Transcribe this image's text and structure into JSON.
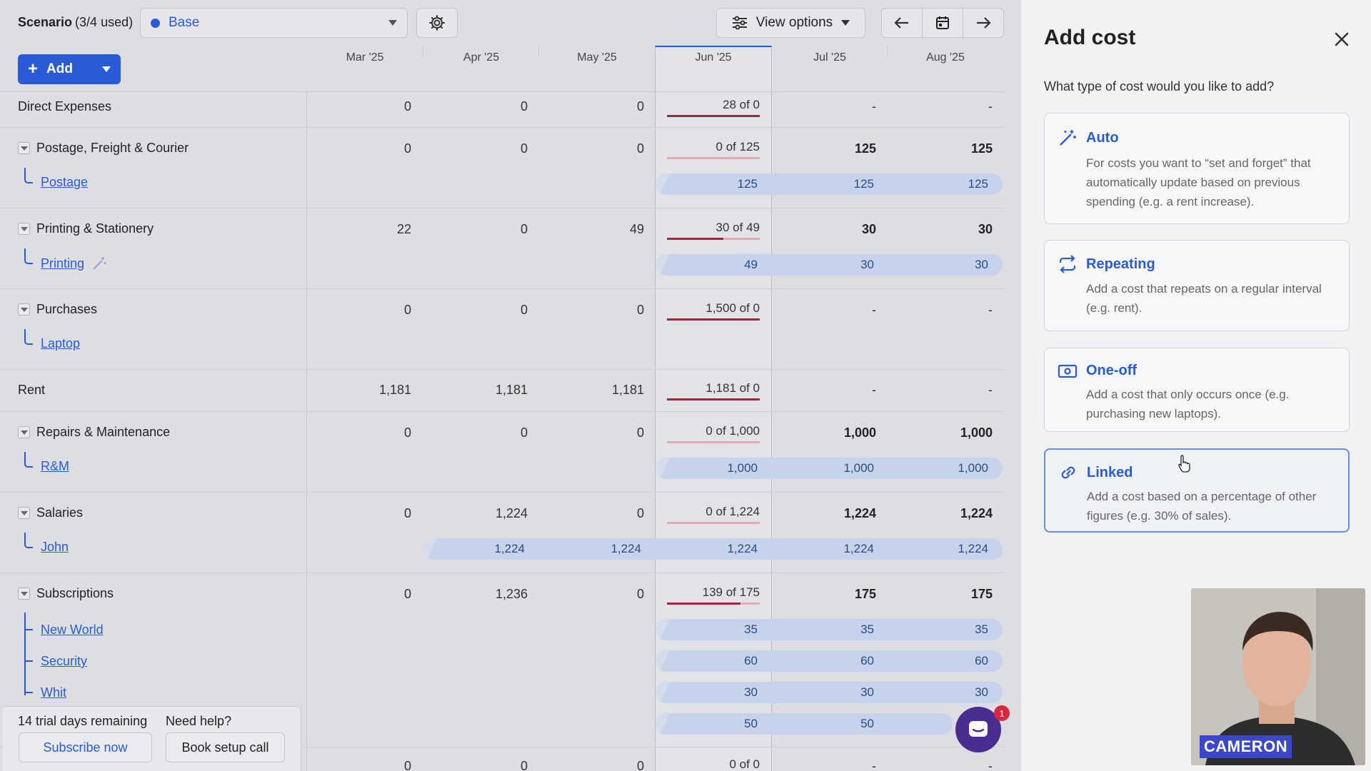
{
  "toolbar": {
    "scenario_label": "Scenario",
    "scenario_used": "(3/4 used)",
    "scenario_value": "Base",
    "view_options": "View options",
    "add_label": "Add"
  },
  "months": [
    "Mar '25",
    "Apr '25",
    "May '25",
    "Jun '25",
    "Jul '25",
    "Aug '25"
  ],
  "rows": {
    "direct": {
      "label": "Direct Expenses",
      "mar": "0",
      "apr": "0",
      "may": "0",
      "jun": "28 of 0",
      "jul": "-",
      "aug": "-"
    },
    "postage_grp": {
      "label": "Postage, Freight & Courier",
      "mar": "0",
      "apr": "0",
      "may": "0",
      "jun": "0 of 125",
      "jul": "125",
      "aug": "125"
    },
    "postage": {
      "label": "Postage",
      "jun": "125",
      "jul": "125",
      "aug": "125"
    },
    "printing_grp": {
      "label": "Printing & Stationery",
      "mar": "22",
      "apr": "0",
      "may": "49",
      "jun": "30 of 49",
      "jul": "30",
      "aug": "30"
    },
    "printing": {
      "label": "Printing",
      "jun": "49",
      "jul": "30",
      "aug": "30"
    },
    "purchases_grp": {
      "label": "Purchases",
      "mar": "0",
      "apr": "0",
      "may": "0",
      "jun": "1,500 of 0",
      "jul": "-",
      "aug": "-"
    },
    "laptop": {
      "label": "Laptop"
    },
    "rent": {
      "label": "Rent",
      "mar": "1,181",
      "apr": "1,181",
      "may": "1,181",
      "jun": "1,181 of 0",
      "jul": "-",
      "aug": "-"
    },
    "repairs_grp": {
      "label": "Repairs & Maintenance",
      "mar": "0",
      "apr": "0",
      "may": "0",
      "jun": "0 of 1,000",
      "jul": "1,000",
      "aug": "1,000"
    },
    "rm": {
      "label": "R&M",
      "jun": "1,000",
      "jul": "1,000",
      "aug": "1,000"
    },
    "salaries_grp": {
      "label": "Salaries",
      "mar": "0",
      "apr": "1,224",
      "may": "0",
      "jun": "0 of 1,224",
      "jul": "1,224",
      "aug": "1,224"
    },
    "john": {
      "label": "John",
      "apr": "1,224",
      "may": "1,224",
      "jun": "1,224",
      "jul": "1,224",
      "aug": "1,224"
    },
    "subs_grp": {
      "label": "Subscriptions",
      "mar": "0",
      "apr": "1,236",
      "may": "0",
      "jun": "139 of 175",
      "jul": "175",
      "aug": "175"
    },
    "newworld": {
      "label": "New World",
      "jun": "35",
      "jul": "35",
      "aug": "35"
    },
    "security": {
      "label": "Security",
      "jun": "60",
      "jul": "60",
      "aug": "60"
    },
    "whit": {
      "label": "Whit",
      "jun": "30",
      "jul": "30",
      "aug": "30"
    },
    "extra": {
      "jun": "50",
      "jul": "50"
    },
    "last": {
      "mar": "0",
      "apr": "0",
      "may": "0",
      "jun": "0 of 0",
      "jul": "-",
      "aug": "-"
    }
  },
  "progress": {
    "direct": 1,
    "postage": 0,
    "printing": 0.61,
    "purchases": 1,
    "rent": 1,
    "repairs": 0,
    "salaries": 0,
    "subs": 0.79
  },
  "trial": {
    "days": "14 trial days remaining",
    "help": "Need help?",
    "subscribe": "Subscribe now",
    "book": "Book setup call"
  },
  "chat_badge": "1",
  "panel": {
    "title": "Add cost",
    "question": "What type of cost would you like to add?",
    "options": [
      {
        "title": "Auto",
        "desc": "For costs you want to “set and forget” that automatically update based on previous spending (e.g. a rent increase)."
      },
      {
        "title": "Repeating",
        "desc": "Add a cost that repeats on a regular interval (e.g. rent)."
      },
      {
        "title": "One-off",
        "desc": "Add a cost that only occurs once (e.g. purchasing new laptops)."
      },
      {
        "title": "Linked",
        "desc": "Add a cost based on a percentage of other figures (e.g. 30% of sales)."
      }
    ]
  },
  "presenter": "CAMERON",
  "colors": {
    "accent": "#2a5bd7",
    "progress": "#a3283b",
    "chat": "#4b2d8f"
  }
}
